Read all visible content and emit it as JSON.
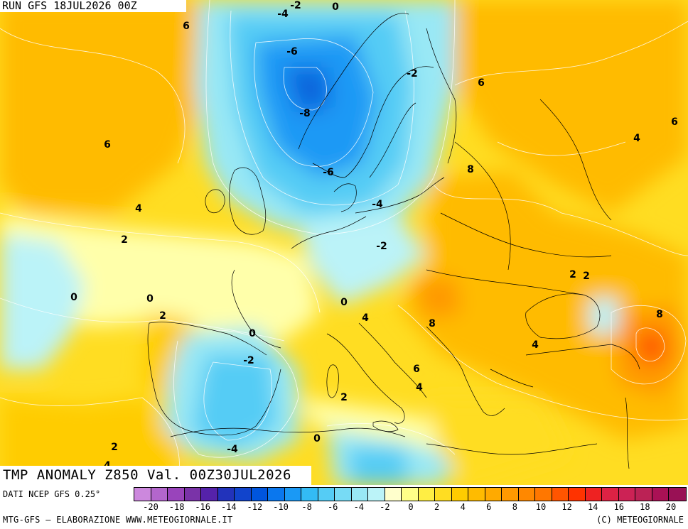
{
  "run_label": "RUN GFS 18JUL2026 00Z",
  "title": "TMP ANOMALY Z850 Val. 00Z30JUL2026",
  "source": "DATI NCEP GFS 0.25°",
  "credit": "MTG-GFS — ELABORAZIONE WWW.METEOGIORNALE.IT",
  "copyright": "(C) METEOGIORNALE",
  "legend": {
    "ticks": [
      "-20",
      "-18",
      "-16",
      "-14",
      "-12",
      "-10",
      "-8",
      "-6",
      "-4",
      "-2",
      "0",
      "2",
      "4",
      "6",
      "8",
      "10",
      "12",
      "14",
      "16",
      "18",
      "20"
    ],
    "colors": [
      "#cc88dd",
      "#b366cc",
      "#9944bb",
      "#7a33a8",
      "#5522aa",
      "#2233bb",
      "#1144cc",
      "#0055dd",
      "#0a77ee",
      "#1a99f5",
      "#33bbf5",
      "#55ccf5",
      "#77dbf5",
      "#99e8f5",
      "#bbf3f8",
      "#ffffcc",
      "#ffff88",
      "#ffee44",
      "#ffdd22",
      "#ffcc00",
      "#ffbb00",
      "#ffaa00",
      "#ff9900",
      "#ff8800",
      "#ff7700",
      "#ff5500",
      "#ff3300",
      "#ee2222",
      "#dd2244",
      "#cc2255",
      "#bb2255",
      "#aa1155",
      "#991155"
    ]
  },
  "contour_labels": [
    {
      "text": "-2"
    },
    {
      "text": "0"
    },
    {
      "text": "-4"
    },
    {
      "text": "6"
    },
    {
      "text": "-6"
    },
    {
      "text": "-2"
    },
    {
      "text": "6"
    },
    {
      "text": "-8"
    },
    {
      "text": "6"
    },
    {
      "text": "6"
    },
    {
      "text": "4"
    },
    {
      "text": "-6"
    },
    {
      "text": "8"
    },
    {
      "text": "-4"
    },
    {
      "text": "4"
    },
    {
      "text": "2"
    },
    {
      "text": "-2"
    },
    {
      "text": "2"
    },
    {
      "text": "2"
    },
    {
      "text": "0"
    },
    {
      "text": "0"
    },
    {
      "text": "0"
    },
    {
      "text": "2"
    },
    {
      "text": "4"
    },
    {
      "text": "8"
    },
    {
      "text": "8"
    },
    {
      "text": "0"
    },
    {
      "text": "4"
    },
    {
      "text": "-2"
    },
    {
      "text": "6"
    },
    {
      "text": "4"
    },
    {
      "text": "2"
    },
    {
      "text": "0"
    },
    {
      "text": "-4"
    },
    {
      "text": "2"
    },
    {
      "text": "4"
    }
  ]
}
